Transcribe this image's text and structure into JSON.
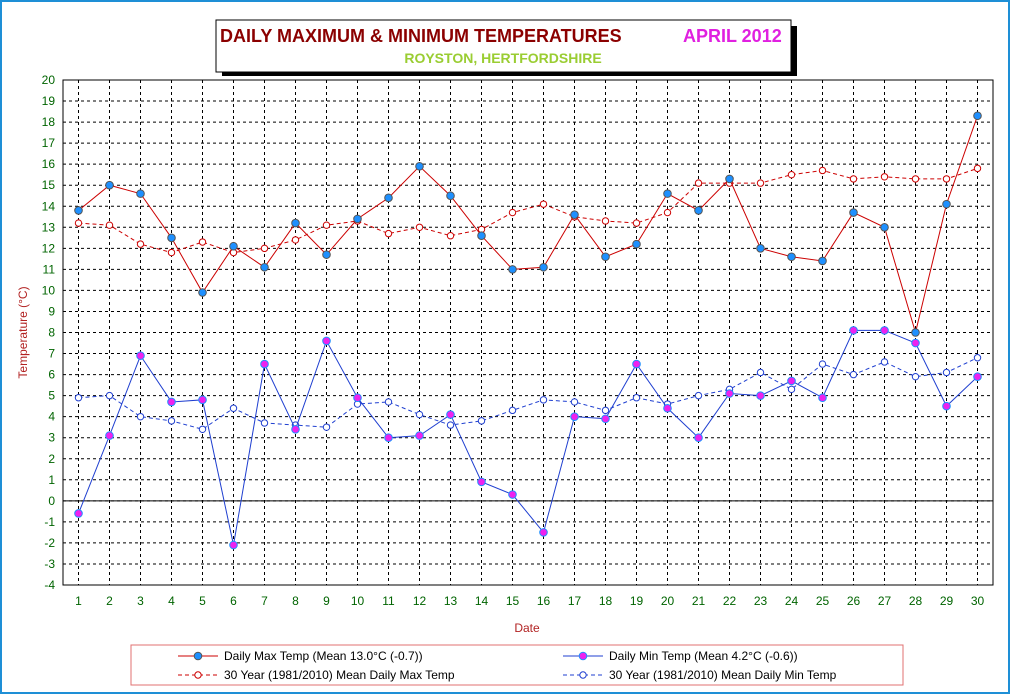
{
  "title": {
    "main": "DAILY MAXIMUM &  MINIMUM  TEMPERATURES",
    "month": "APRIL 2012",
    "location": "ROYSTON, HERTFORDSHIRE"
  },
  "colors": {
    "title_main": "#8b0000",
    "title_month": "#e020e0",
    "title_location": "#9acd32",
    "axis_text": "#006400",
    "axis_label": "#b22222",
    "max_series": "#cc0000",
    "min_series": "#1f3fd0",
    "marker_max": "#1e90ff",
    "marker_min": "#ee22ee",
    "frame": "#1e8fd6"
  },
  "chart_data": {
    "type": "line",
    "xlabel": "Date",
    "ylabel": "Temperature (°C)",
    "ylim": [
      -4,
      20
    ],
    "xlim": [
      1,
      30
    ],
    "grid": true,
    "legend_position": "bottom",
    "x": [
      1,
      2,
      3,
      4,
      5,
      6,
      7,
      8,
      9,
      10,
      11,
      12,
      13,
      14,
      15,
      16,
      17,
      18,
      19,
      20,
      21,
      22,
      23,
      24,
      25,
      26,
      27,
      28,
      29,
      30
    ],
    "series": [
      {
        "name": "Daily Max Temp (Mean 13.0°C (-0.7))",
        "style": "solid",
        "color": "#cc0000",
        "marker": "filled",
        "values": [
          13.8,
          15.0,
          14.6,
          12.5,
          9.9,
          12.1,
          11.1,
          13.2,
          11.7,
          13.4,
          14.4,
          15.9,
          14.5,
          12.6,
          11.0,
          11.1,
          13.6,
          11.6,
          12.2,
          14.6,
          13.8,
          15.3,
          12.0,
          11.6,
          11.4,
          13.7,
          13.0,
          8.0,
          14.1,
          18.3
        ]
      },
      {
        "name": "Daily Min Temp (Mean 4.2°C (-0.6))",
        "style": "solid",
        "color": "#1f3fd0",
        "marker": "filled",
        "values": [
          -0.6,
          3.1,
          6.9,
          4.7,
          4.8,
          -2.1,
          6.5,
          3.4,
          7.6,
          4.9,
          3.0,
          3.1,
          4.1,
          0.9,
          0.3,
          -1.5,
          4.0,
          3.9,
          6.5,
          4.4,
          3.0,
          5.1,
          5.0,
          5.7,
          4.9,
          8.1,
          8.1,
          7.5,
          4.5,
          5.9
        ]
      },
      {
        "name": "30 Year (1981/2010) Mean Daily Max Temp",
        "style": "dashed",
        "color": "#cc0000",
        "marker": "open",
        "values": [
          13.2,
          13.1,
          12.2,
          11.8,
          12.3,
          11.8,
          12.0,
          12.4,
          13.1,
          13.3,
          12.7,
          13.0,
          12.6,
          12.9,
          13.7,
          14.1,
          13.5,
          13.3,
          13.2,
          13.7,
          15.1,
          15.1,
          15.1,
          15.5,
          15.7,
          15.3,
          15.4,
          15.3,
          15.3,
          15.8
        ]
      },
      {
        "name": "30 Year (1981/2010) Mean Daily Min Temp",
        "style": "dashed",
        "color": "#1f3fd0",
        "marker": "open",
        "values": [
          4.9,
          5.0,
          4.0,
          3.8,
          3.4,
          4.4,
          3.7,
          3.6,
          3.5,
          4.6,
          4.7,
          4.1,
          3.6,
          3.8,
          4.3,
          4.8,
          4.7,
          4.3,
          4.9,
          4.6,
          5.0,
          5.3,
          6.1,
          5.3,
          6.5,
          6.0,
          6.6,
          5.9,
          6.1,
          6.8
        ]
      }
    ]
  }
}
